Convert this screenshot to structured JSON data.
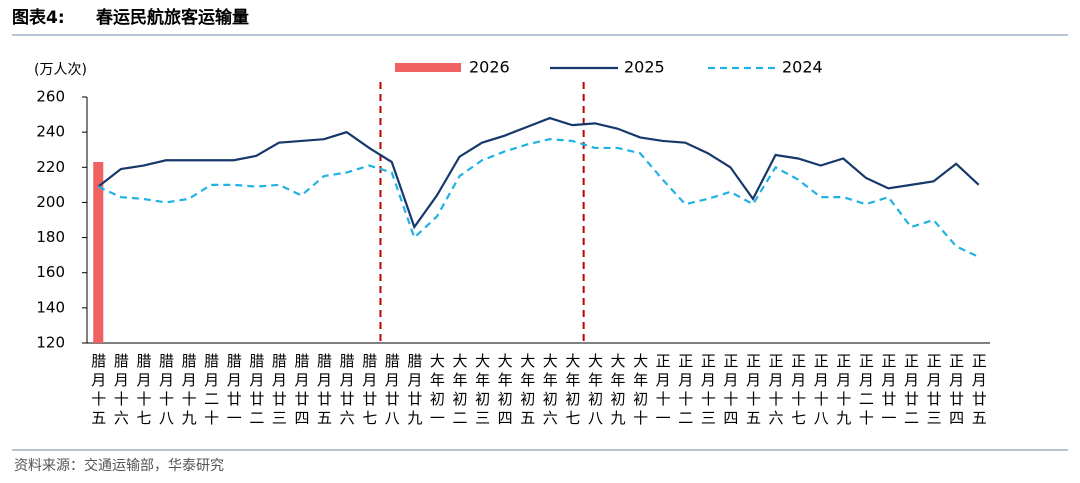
{
  "chart_data": {
    "type": "line",
    "title": "图表4:",
    "subtitle": "春运民航旅客运输量",
    "y_label": "(万人次)",
    "source": "资料来源：交通运输部，华泰研究",
    "categories": [
      "腊月十五",
      "腊月十六",
      "腊月十七",
      "腊月十八",
      "腊月十九",
      "腊月二十",
      "腊月廿一",
      "腊月廿二",
      "腊月廿三",
      "腊月廿四",
      "腊月廿五",
      "腊月廿六",
      "腊月廿七",
      "腊月廿八",
      "腊月廿九",
      "大年初一",
      "大年初二",
      "大年初三",
      "大年初四",
      "大年初五",
      "大年初六",
      "大年初七",
      "大年初八",
      "大年初九",
      "大年初十",
      "正月十一",
      "正月十二",
      "正月十三",
      "正月十四",
      "正月十五",
      "正月十六",
      "正月十七",
      "正月十八",
      "正月十九",
      "正月二十",
      "正月廿一",
      "正月廿二",
      "正月廿三",
      "正月廿四",
      "正月廿五"
    ],
    "series": [
      {
        "name": "2026",
        "type": "bar",
        "color": "#f06262",
        "values": [
          223,
          null,
          null,
          null,
          null,
          null,
          null,
          null,
          null,
          null,
          null,
          null,
          null,
          null,
          null,
          null,
          null,
          null,
          null,
          null,
          null,
          null,
          null,
          null,
          null,
          null,
          null,
          null,
          null,
          null,
          null,
          null,
          null,
          null,
          null,
          null,
          null,
          null,
          null,
          null
        ]
      },
      {
        "name": "2025",
        "type": "line",
        "color": "#17386b",
        "dash": false,
        "values": [
          209,
          219,
          221,
          224,
          224,
          224,
          224,
          226.5,
          234,
          235,
          236,
          240,
          231,
          223,
          186,
          204,
          226,
          234,
          238,
          243,
          248,
          244,
          245,
          242,
          237,
          235,
          234,
          228,
          220,
          202,
          227,
          225,
          221,
          225,
          214,
          208,
          210,
          212,
          222,
          210
        ]
      },
      {
        "name": "2024",
        "type": "line",
        "color": "#1fb2e3",
        "dash": true,
        "values": [
          209,
          203,
          202,
          200,
          202,
          210,
          210,
          209,
          210,
          204,
          215,
          217,
          221,
          217,
          180,
          192,
          215,
          224,
          229,
          233,
          236,
          235,
          231,
          231,
          228,
          213,
          199,
          202,
          206,
          199,
          220,
          213,
          203,
          203,
          199,
          203,
          186,
          190,
          175,
          169
        ]
      }
    ],
    "ylim": [
      120,
      260
    ],
    "yticks": [
      120,
      140,
      160,
      180,
      200,
      220,
      240,
      260
    ]
  }
}
